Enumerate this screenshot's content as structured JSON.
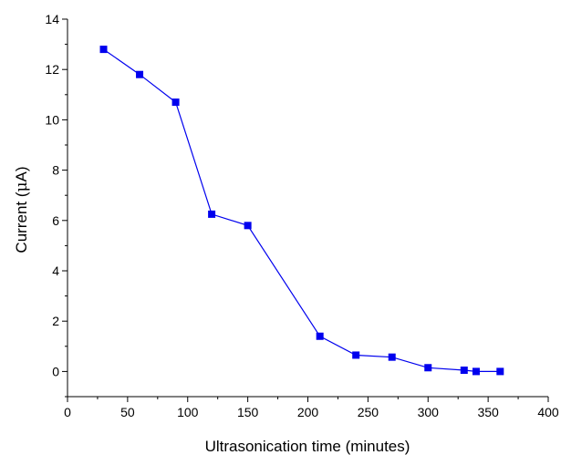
{
  "chart_data": {
    "type": "line",
    "title": "",
    "xlabel": "Ultrasonication time (minutes)",
    "ylabel_prefix": "Current (",
    "ylabel_symbol": "μ",
    "ylabel_suffix": "A)",
    "xlim": [
      0,
      400
    ],
    "ylim": [
      -1,
      14
    ],
    "xticks": [
      0,
      50,
      100,
      150,
      200,
      250,
      300,
      350,
      400
    ],
    "yticks": [
      0,
      2,
      4,
      6,
      8,
      10,
      12,
      14
    ],
    "grid": false,
    "series": [
      {
        "color": "#0000ee",
        "marker": "square",
        "x": [
          30,
          60,
          90,
          120,
          150,
          210,
          240,
          270,
          300,
          330,
          340,
          360
        ],
        "y": [
          12.8,
          11.8,
          10.7,
          6.25,
          5.8,
          1.4,
          0.65,
          0.57,
          0.15,
          0.05,
          0.0,
          0.0
        ]
      }
    ]
  }
}
